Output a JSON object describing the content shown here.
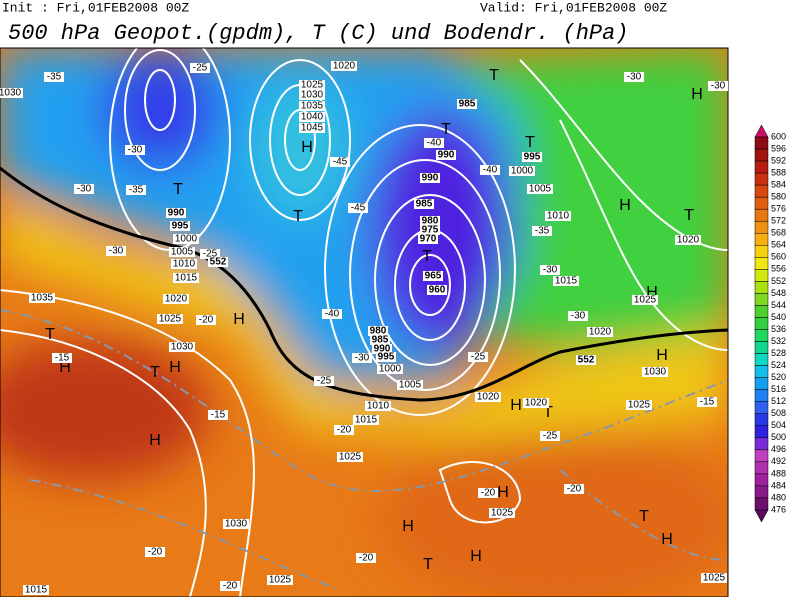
{
  "header": {
    "init": "Init : Fri,01FEB2008 00Z",
    "valid": "Valid: Fri,01FEB2008 00Z",
    "title": "500 hPa Geopot.(gpdm), T (C) und Bodendr. (hPa)"
  },
  "colorbar": {
    "levels": [
      600,
      596,
      592,
      588,
      584,
      580,
      576,
      572,
      568,
      564,
      560,
      556,
      552,
      548,
      544,
      540,
      536,
      532,
      528,
      524,
      520,
      516,
      512,
      508,
      504,
      500,
      496,
      492,
      488,
      484,
      480,
      476
    ],
    "colors": [
      "#c8106a",
      "#8c0c14",
      "#a01212",
      "#b81e10",
      "#c83010",
      "#d84810",
      "#e06010",
      "#e87810",
      "#f09010",
      "#f8b010",
      "#f8d010",
      "#f0e810",
      "#d0e810",
      "#a8e010",
      "#80d820",
      "#50d030",
      "#30d040",
      "#20d860",
      "#10d890",
      "#10d8c0",
      "#10c0e8",
      "#10a0f0",
      "#2080f0",
      "#3060f0",
      "#2838e8",
      "#3020e0",
      "#7a2ad8",
      "#c040c0",
      "#b030b0",
      "#a020a0",
      "#8a1a8a",
      "#6e0f6e",
      "#5a0a5a"
    ]
  },
  "map_labels": [
    "H",
    "T",
    "T",
    "H",
    "T",
    "H",
    "T",
    "H",
    "H",
    "T",
    "T",
    "T",
    "H",
    "H",
    "T",
    "T",
    "H",
    "H",
    "H",
    "T",
    "H",
    "H",
    "T",
    "H",
    "T",
    "H",
    "1020",
    "985",
    "990",
    "995",
    "1000",
    "1005",
    "1010",
    "1015",
    "1020",
    "1025",
    "1030",
    "1025",
    "1020",
    "1035",
    "1020",
    "1025",
    "1030",
    "1040",
    "1045",
    "1035",
    "1030",
    "1025",
    "990",
    "995",
    "1000",
    "1005",
    "1010",
    "1015",
    "965",
    "960",
    "980",
    "975",
    "970",
    "985",
    "990",
    "980",
    "985",
    "990",
    "995",
    "1000",
    "1005",
    "1010",
    "1015",
    "1020",
    "1025",
    "1030",
    "1025",
    "1025",
    "1020",
    "1015",
    "1025",
    "1030",
    "-35",
    "-30",
    "-35",
    "-30",
    "-30",
    "-25",
    "-20",
    "-15",
    "-15",
    "-20",
    "-25",
    "-30",
    "-40",
    "-45",
    "-45",
    "-40",
    "-40",
    "-35",
    "-30",
    "-30",
    "-25",
    "-25",
    "-20",
    "-20",
    "-20",
    "-20",
    "-20",
    "-15",
    "-30",
    "-30",
    "-25",
    "552",
    "552"
  ]
}
